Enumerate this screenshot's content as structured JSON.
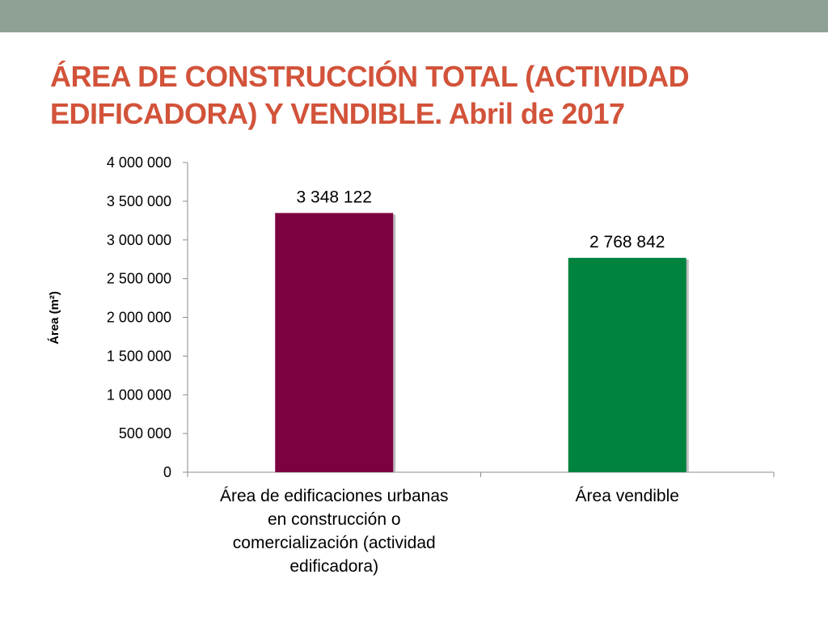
{
  "slide": {
    "band_color": "#8fa195",
    "title_color": "#d2533a",
    "title_lines": [
      "ÁREA DE CONSTRUCCIÓN TOTAL (ACTIVIDAD",
      "EDIFICADORA) Y VENDIBLE. Abril de 2017"
    ]
  },
  "chart_data": {
    "type": "bar",
    "categories": [
      [
        "Área de edificaciones urbanas",
        "en construcción o",
        "comercialización (actividad",
        "edificadora)"
      ],
      [
        "Área vendible"
      ]
    ],
    "values": [
      3348122,
      2768842
    ],
    "value_labels": [
      "3 348 122",
      "2 768 842"
    ],
    "bar_colors": [
      "#7d0040",
      "#00833e"
    ],
    "ylabel": "Área (m²)",
    "ylim": [
      0,
      4000000
    ],
    "yticks": [
      0,
      500000,
      1000000,
      1500000,
      2000000,
      2500000,
      3000000,
      3500000,
      4000000
    ],
    "ytick_labels": [
      "0",
      "500 000",
      "1 000 000",
      "1 500 000",
      "2 000 000",
      "2 500 000",
      "3 000 000",
      "3 500 000",
      "4 000 000"
    ],
    "grid": false,
    "legend": "none"
  }
}
